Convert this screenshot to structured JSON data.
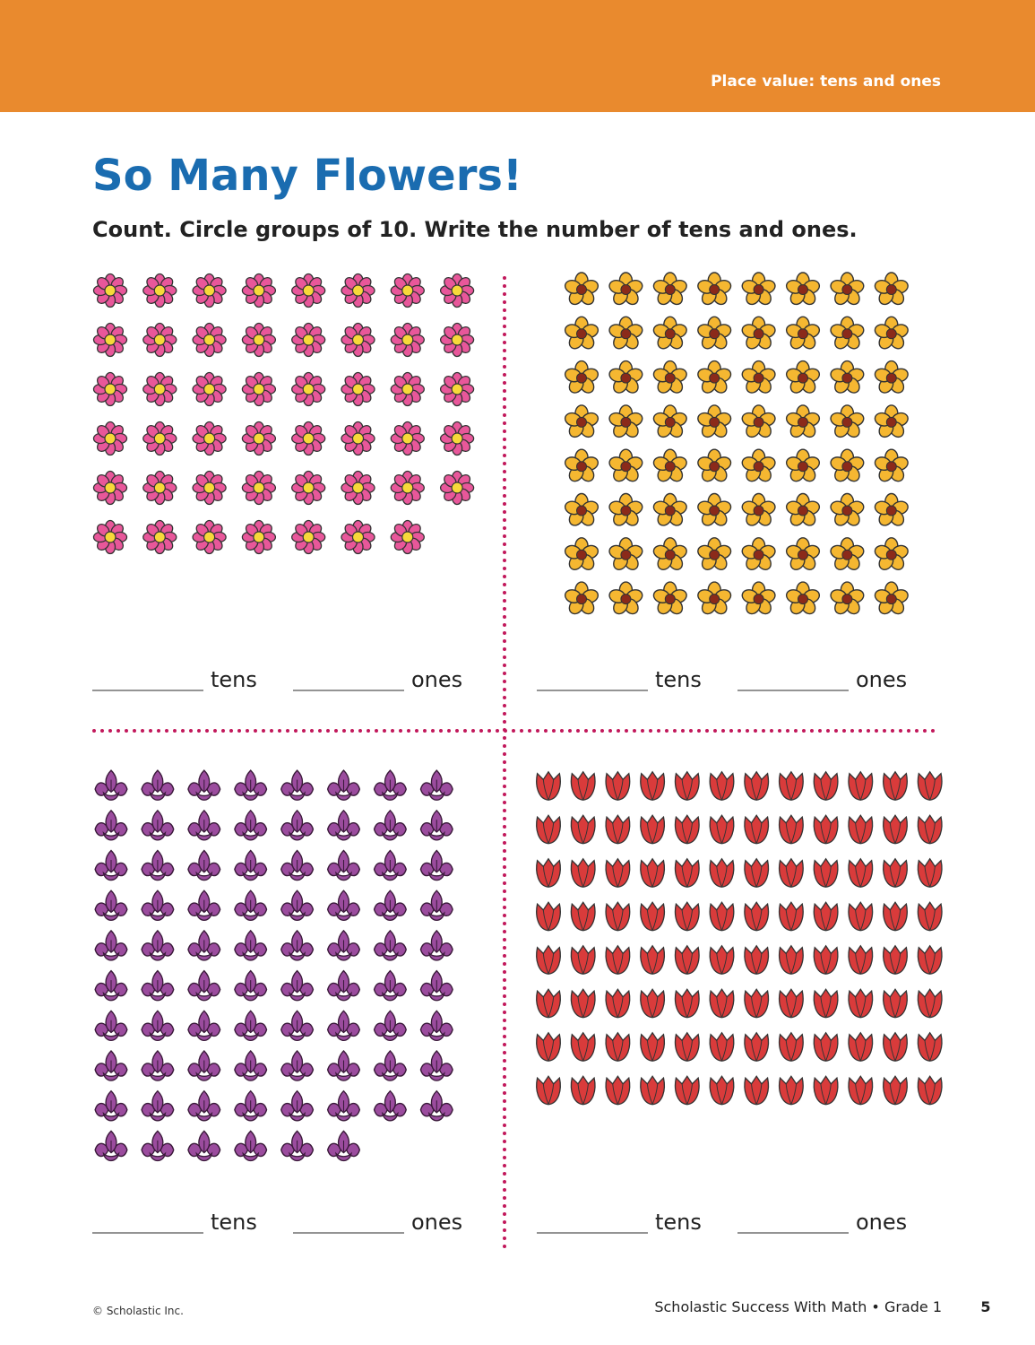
{
  "header": {
    "label": "Place value: tens and ones"
  },
  "title": "So Many Flowers!",
  "instructions": "Count. Circle groups of 10. Write the number of tens and ones.",
  "panels": [
    {
      "tens_label": "tens",
      "ones_label": "ones"
    },
    {
      "tens_label": "tens",
      "ones_label": "ones"
    },
    {
      "tens_label": "tens",
      "ones_label": "ones"
    },
    {
      "tens_label": "tens",
      "ones_label": "ones"
    }
  ],
  "footer": {
    "copyright": "© Scholastic Inc.",
    "book": "Scholastic Success With Math • Grade 1",
    "page_number": "5"
  }
}
